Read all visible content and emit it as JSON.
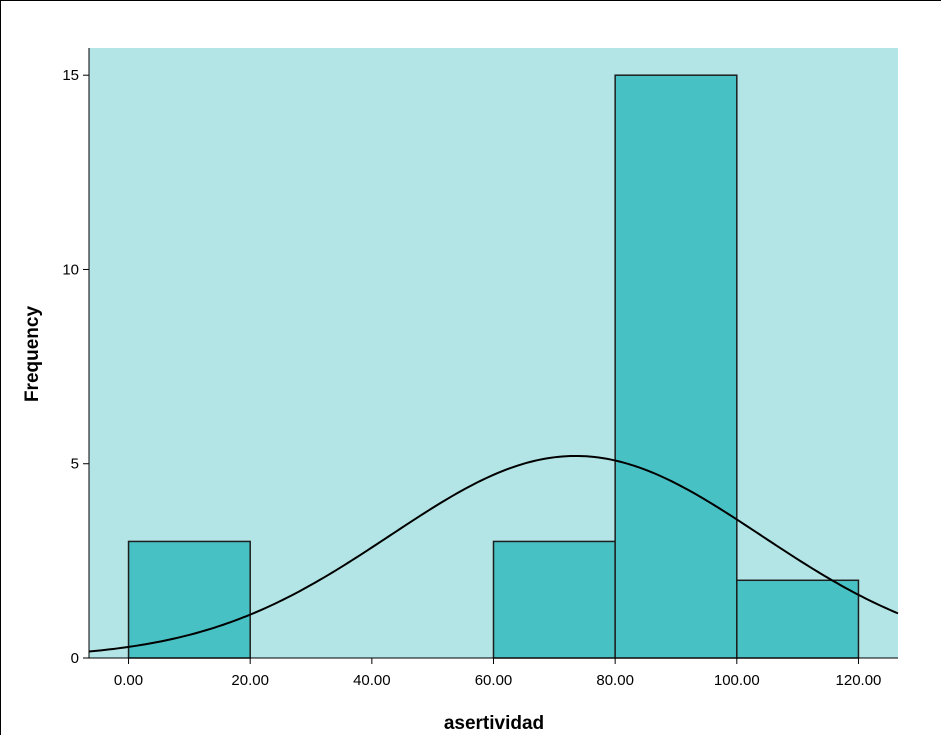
{
  "chart_data": {
    "type": "bar",
    "subtype": "histogram",
    "title": "",
    "xlabel": "asertividad",
    "ylabel": "Frequency",
    "bins": [
      {
        "start": 0,
        "end": 20,
        "value": 3
      },
      {
        "start": 20,
        "end": 40,
        "value": 0
      },
      {
        "start": 40,
        "end": 60,
        "value": 0
      },
      {
        "start": 60,
        "end": 80,
        "value": 3
      },
      {
        "start": 80,
        "end": 100,
        "value": 15
      },
      {
        "start": 100,
        "end": 120,
        "value": 2
      }
    ],
    "xlim": [
      -6.5,
      126.5
    ],
    "ylim": [
      0,
      15.7
    ],
    "xticks": [
      0,
      20,
      40,
      60,
      80,
      100,
      120
    ],
    "xtick_labels": [
      "0.00",
      "20.00",
      "40.00",
      "60.00",
      "80.00",
      "100.00",
      "120.00"
    ],
    "yticks": [
      0,
      5,
      10,
      15
    ],
    "ytick_labels": [
      "0",
      "5",
      "10",
      "15"
    ],
    "normal_curve": {
      "mean": 73.5,
      "peak": 5.2,
      "sd": 30.5
    },
    "grid": false,
    "colors": {
      "plot_background": "#b4e5e6",
      "bar_fill": "#48c1c5",
      "bar_stroke": "#1d1d1d",
      "curve": "#000000"
    }
  }
}
